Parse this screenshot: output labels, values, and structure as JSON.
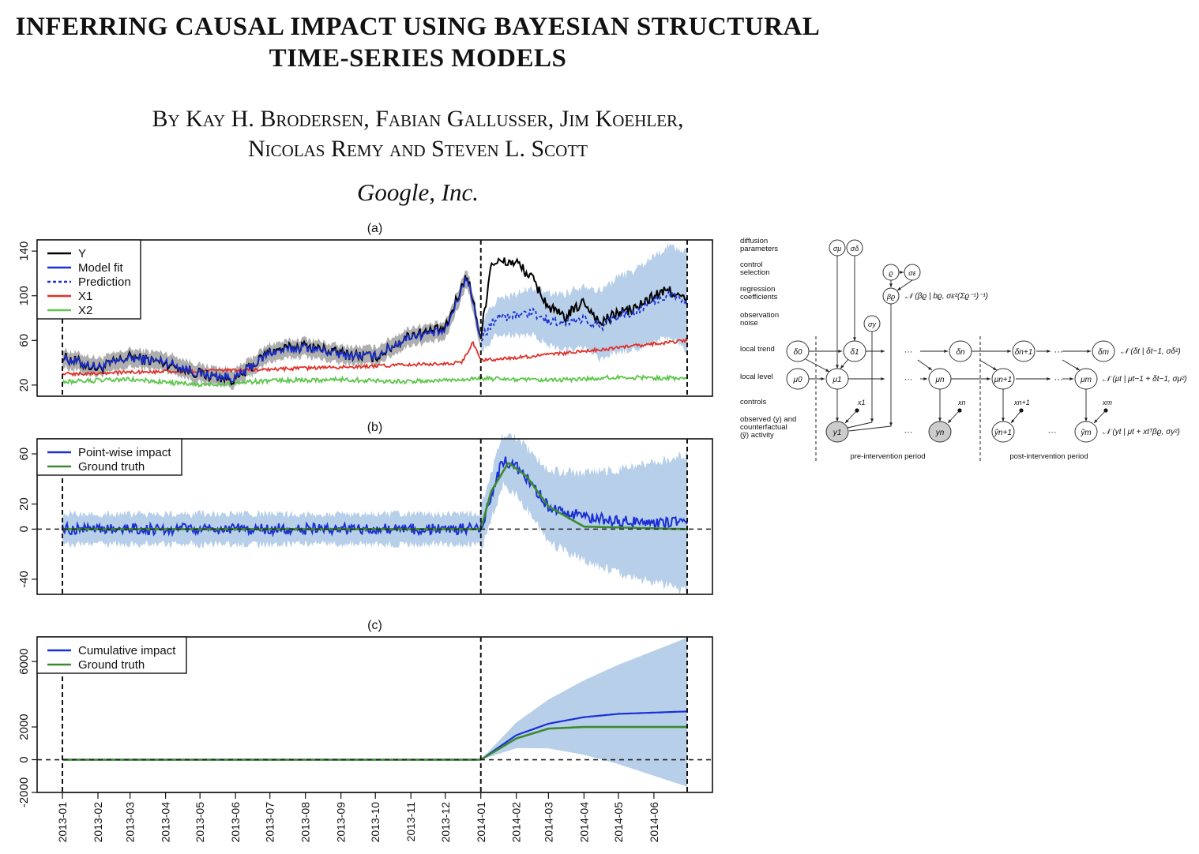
{
  "paper": {
    "title_line1": "INFERRING CAUSAL IMPACT USING BAYESIAN STRUCTURAL",
    "title_line2": "TIME-SERIES MODELS",
    "authors_line1": "By Kay H. Brodersen, Fabian Gallusser, Jim Koehler,",
    "authors_line2": "Nicolas Remy and Steven L. Scott",
    "affiliation": "Google, Inc."
  },
  "colors": {
    "y": "#000000",
    "model_fit": "#1a2fd6",
    "prediction": "#1a2fd6",
    "x1": "#e0312b",
    "x2": "#5cc64a",
    "ground_truth": "#3d8a2e",
    "band": "#b7cfe9",
    "grey_band": "#9a9a9a"
  },
  "chart_data": [
    {
      "type": "line",
      "panel_label": "(a)",
      "x_range": [
        "2013-01-01",
        "2014-06-30"
      ],
      "intervention": "2014-01-01",
      "ylim": [
        10,
        150
      ],
      "yticks": [
        20,
        60,
        100,
        140
      ],
      "legend": "top-left",
      "series": [
        {
          "name": "Y",
          "style": "solid",
          "x": [
            "2013-01-01",
            "2013-02-01",
            "2013-03-01",
            "2013-04-01",
            "2013-05-01",
            "2013-06-01",
            "2013-07-01",
            "2013-08-01",
            "2013-09-01",
            "2013-10-01",
            "2013-11-01",
            "2013-12-01",
            "2013-12-20",
            "2014-01-01",
            "2014-01-10",
            "2014-02-01",
            "2014-02-15",
            "2014-03-01",
            "2014-03-15",
            "2014-04-01",
            "2014-04-15",
            "2014-05-01",
            "2014-05-15",
            "2014-06-01",
            "2014-06-15",
            "2014-06-30"
          ],
          "values": [
            45,
            35,
            45,
            40,
            30,
            25,
            50,
            55,
            48,
            45,
            65,
            70,
            120,
            62,
            130,
            130,
            115,
            90,
            80,
            95,
            75,
            85,
            88,
            100,
            105,
            95
          ]
        },
        {
          "name": "Model fit",
          "style": "solid",
          "x": [
            "2013-01-01",
            "2013-02-01",
            "2013-03-01",
            "2013-04-01",
            "2013-05-01",
            "2013-06-01",
            "2013-07-01",
            "2013-08-01",
            "2013-09-01",
            "2013-10-01",
            "2013-11-01",
            "2013-12-01",
            "2013-12-20",
            "2014-01-01"
          ],
          "values": [
            44,
            36,
            44,
            41,
            30,
            26,
            49,
            54,
            47,
            46,
            64,
            68,
            118,
            60
          ]
        },
        {
          "name": "Prediction",
          "style": "dashed",
          "x": [
            "2014-01-01",
            "2014-01-15",
            "2014-02-01",
            "2014-02-15",
            "2014-03-01",
            "2014-03-15",
            "2014-04-01",
            "2014-04-15",
            "2014-05-01",
            "2014-05-15",
            "2014-06-01",
            "2014-06-15",
            "2014-06-30"
          ],
          "values": [
            62,
            80,
            82,
            85,
            78,
            75,
            80,
            72,
            82,
            85,
            95,
            102,
            92
          ]
        },
        {
          "name": "X1",
          "style": "solid",
          "x": [
            "2013-01-01",
            "2013-04-01",
            "2013-07-01",
            "2013-10-01",
            "2013-12-15",
            "2013-12-25",
            "2014-01-01",
            "2014-03-01",
            "2014-06-30"
          ],
          "values": [
            30,
            32,
            34,
            37,
            40,
            58,
            42,
            47,
            60
          ]
        },
        {
          "name": "X2",
          "style": "solid",
          "x": [
            "2013-01-01",
            "2013-03-01",
            "2013-05-01",
            "2013-07-01",
            "2013-09-01",
            "2013-11-01",
            "2014-01-01",
            "2014-03-01",
            "2014-05-01",
            "2014-06-30"
          ],
          "values": [
            23,
            25,
            20,
            24,
            25,
            23,
            26,
            24,
            27,
            26
          ]
        }
      ]
    },
    {
      "type": "line",
      "panel_label": "(b)",
      "x_range": [
        "2013-01-01",
        "2014-06-30"
      ],
      "intervention": "2014-01-01",
      "ylim": [
        -52,
        72
      ],
      "yticks": [
        -40,
        0,
        20,
        60
      ],
      "legend": "top-left",
      "series": [
        {
          "name": "Point-wise impact",
          "style": "solid",
          "x": [
            "2013-01-01",
            "2013-07-01",
            "2013-12-31",
            "2014-01-01",
            "2014-01-20",
            "2014-02-01",
            "2014-02-15",
            "2014-03-01",
            "2014-04-01",
            "2014-05-01",
            "2014-06-30"
          ],
          "values": [
            0,
            0,
            0,
            0,
            55,
            50,
            35,
            18,
            10,
            6,
            5
          ]
        },
        {
          "name": "Ground truth",
          "style": "solid",
          "x": [
            "2013-01-01",
            "2013-12-31",
            "2014-01-01",
            "2014-01-10",
            "2014-01-25",
            "2014-02-10",
            "2014-03-01",
            "2014-04-01",
            "2014-06-30"
          ],
          "values": [
            0,
            0,
            0,
            30,
            53,
            42,
            18,
            2,
            0
          ]
        }
      ]
    },
    {
      "type": "line",
      "panel_label": "(c)",
      "x_range": [
        "2013-01-01",
        "2014-06-30"
      ],
      "intervention": "2014-01-01",
      "ylim": [
        -2000,
        7500
      ],
      "yticks": [
        -2000,
        0,
        2000,
        6000
      ],
      "legend": "top-left",
      "x_tick_labels": [
        "2013-01",
        "2013-02",
        "2013-03",
        "2013-04",
        "2013-05",
        "2013-06",
        "2013-07",
        "2013-08",
        "2013-09",
        "2013-10",
        "2013-11",
        "2013-12",
        "2014-01",
        "2014-02",
        "2014-03",
        "2014-04",
        "2014-05",
        "2014-06"
      ],
      "series": [
        {
          "name": "Cumulative impact",
          "style": "solid",
          "x": [
            "2013-01-01",
            "2014-01-01",
            "2014-02-01",
            "2014-03-01",
            "2014-04-01",
            "2014-05-01",
            "2014-06-30"
          ],
          "values": [
            0,
            0,
            1500,
            2200,
            2600,
            2800,
            2950
          ]
        },
        {
          "name": "Ground truth",
          "style": "solid",
          "x": [
            "2013-01-01",
            "2014-01-01",
            "2014-02-01",
            "2014-03-01",
            "2014-04-01",
            "2014-05-01",
            "2014-06-30"
          ],
          "values": [
            0,
            0,
            1300,
            1900,
            2000,
            2000,
            2000
          ]
        }
      ]
    }
  ],
  "diagram": {
    "row_labels": [
      [
        "diffusion",
        "parameters"
      ],
      [
        "control",
        "selection"
      ],
      [
        "regression",
        "coefficients"
      ],
      [
        "observation",
        "noise"
      ],
      [
        "local trend"
      ],
      [
        "local level"
      ],
      [
        "controls"
      ],
      [
        "observed (y) and",
        "counterfactual",
        "(ỹ) activity"
      ]
    ],
    "nodes": {
      "sigma_mu": "σμ",
      "sigma_delta": "σδ",
      "rho": "ϱ",
      "sigma_eps": "σε",
      "beta_rho": "βϱ",
      "sigma_y": "σy",
      "delta_0": "δ0",
      "delta_1": "δ1",
      "delta_n": "δn",
      "delta_n1": "δn+1",
      "delta_m": "δm",
      "mu_0": "μ0",
      "mu_1": "μ1",
      "mu_n": "μn",
      "mu_n1": "μn+1",
      "mu_m": "μm",
      "y_1": "y1",
      "y_n": "yn",
      "yt_n1": "ỹn+1",
      "yt_m": "ỹm",
      "x_1": "x1",
      "x_n": "xn",
      "x_n1": "xn+1",
      "x_m": "xm"
    },
    "ellipsis": "···",
    "equations": {
      "regression": "𝒩 (βϱ | bϱ, σε²(Σϱ⁻¹)⁻¹)",
      "trend": "𝒩 (δt | δt−1, σδ²)",
      "level": "𝒩 (μt | μt−1 + δt−1, σμ²)",
      "obs": "𝒩 (yt | μt + xtᵀβϱ, σy²)"
    },
    "period_labels": [
      "pre-intervention period",
      "post-intervention period"
    ]
  }
}
